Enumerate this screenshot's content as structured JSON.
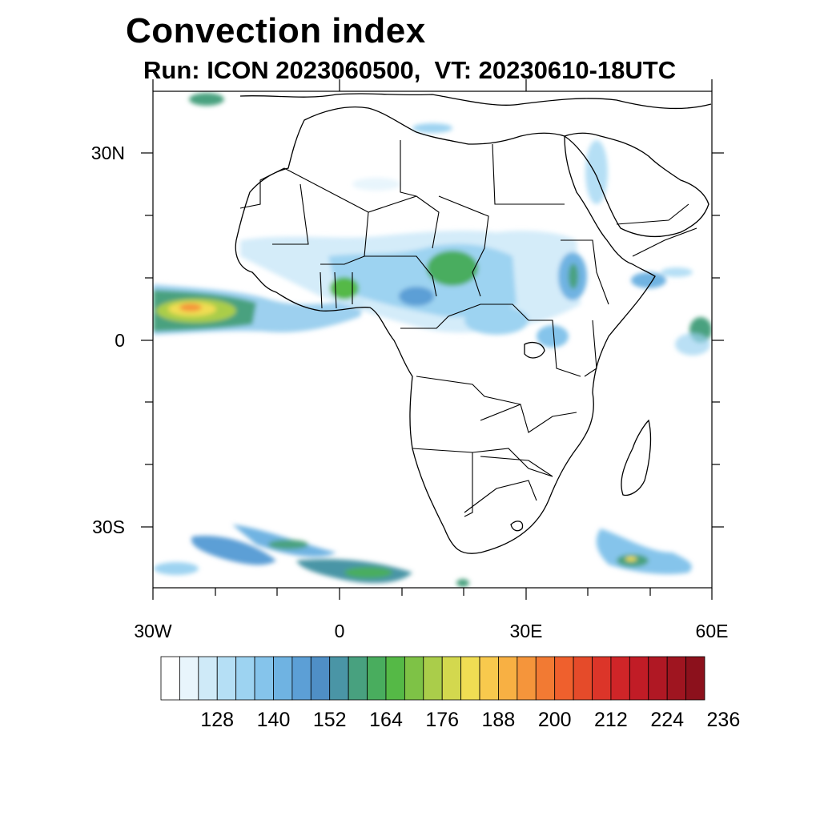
{
  "title": "Convection index",
  "subtitle": "Run: ICON 2023060500,  VT: 20230610-18UTC",
  "lat_ticks": [
    "30N",
    "0",
    "30S"
  ],
  "lon_ticks": [
    "30W",
    "0",
    "30E",
    "60E"
  ],
  "colorbar": {
    "labels": [
      "128",
      "140",
      "152",
      "164",
      "176",
      "188",
      "200",
      "212",
      "224",
      "236"
    ],
    "colors": [
      "#ffffff",
      "#e8f5fc",
      "#cfeaf8",
      "#b5dff5",
      "#9dd3f1",
      "#85c4eb",
      "#6fb3e2",
      "#5c9fd6",
      "#4f8fc6",
      "#4a95a6",
      "#48a17f",
      "#49ad5e",
      "#55b946",
      "#7ec246",
      "#aacd4a",
      "#d3d84e",
      "#f0dd53",
      "#f8c94d",
      "#f8b043",
      "#f5953b",
      "#f27a33",
      "#ef602d",
      "#e54b2a",
      "#dc3529",
      "#cf2528",
      "#c11c26",
      "#b01824",
      "#9f1520",
      "#8c111c"
    ]
  },
  "colors": {
    "land_outline": "#000000",
    "background": "#ffffff"
  }
}
